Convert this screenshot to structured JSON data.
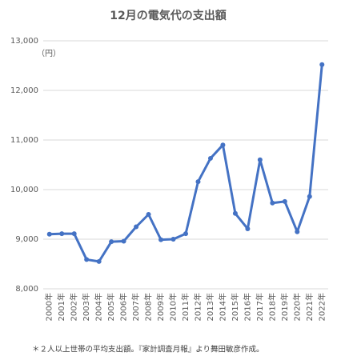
{
  "chart_data": {
    "type": "line",
    "title": "12月の電気代の支出額",
    "y_unit": "（円）",
    "categories": [
      "2000年",
      "2001年",
      "2002年",
      "2003年",
      "2004年",
      "2005年",
      "2006年",
      "2007年",
      "2008年",
      "2009年",
      "2010年",
      "2011年",
      "2012年",
      "2013年",
      "2014年",
      "2015年",
      "2016年",
      "2017年",
      "2018年",
      "2019年",
      "2020年",
      "2021年",
      "2022年"
    ],
    "series": [
      {
        "color": "#4472c4",
        "values": [
          9100,
          9110,
          9110,
          8590,
          8550,
          8950,
          8960,
          9250,
          9500,
          8990,
          9000,
          9110,
          10160,
          10630,
          10900,
          9520,
          9210,
          10600,
          9730,
          9760,
          9150,
          9860,
          12520
        ]
      }
    ],
    "ylim": [
      8000,
      13000
    ],
    "yticks": [
      {
        "value": 8000,
        "label": "8,000"
      },
      {
        "value": 9000,
        "label": "9,000"
      },
      {
        "value": 10000,
        "label": "10,000"
      },
      {
        "value": 11000,
        "label": "11,000"
      },
      {
        "value": 12000,
        "label": "12,000"
      },
      {
        "value": 13000,
        "label": "13,000"
      }
    ],
    "grid": true,
    "note": "＊２人以上世帯の平均支出額。『家計調査月報』より舞田敏彦作成。"
  }
}
